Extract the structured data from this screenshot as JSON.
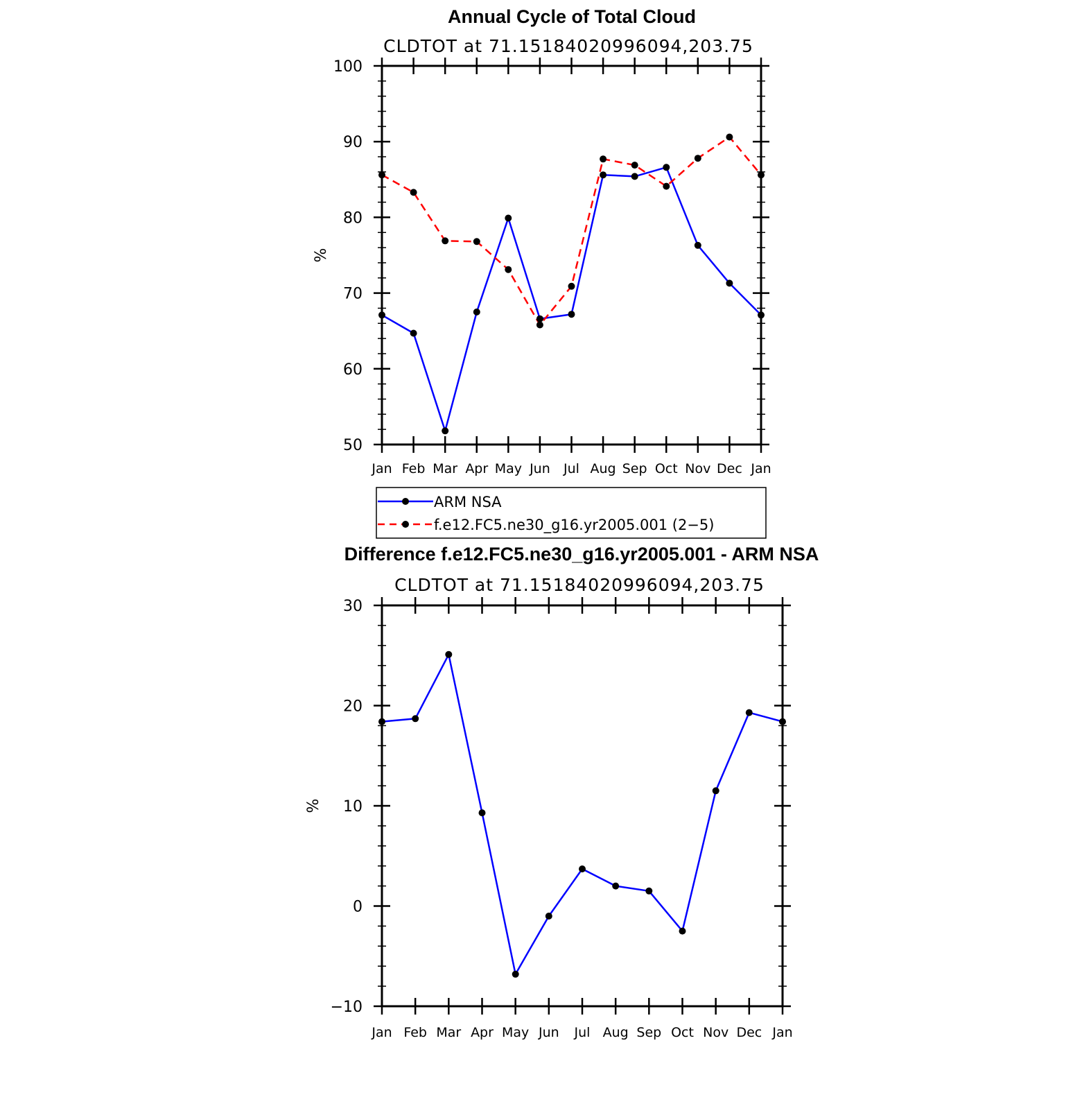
{
  "chart_data": [
    {
      "type": "line",
      "title": "Annual Cycle of Total Cloud",
      "subtitle": "CLDTOT at 71.15184020996094,203.75",
      "ylabel": "%",
      "xlabel": "",
      "ylim": [
        50,
        100
      ],
      "yticks": [
        50,
        60,
        70,
        80,
        90,
        100
      ],
      "categories": [
        "Jan",
        "Feb",
        "Mar",
        "Apr",
        "May",
        "Jun",
        "Jul",
        "Aug",
        "Sep",
        "Oct",
        "Nov",
        "Dec",
        "Jan"
      ],
      "series": [
        {
          "name": "ARM NSA",
          "color": "#0000ff",
          "dash": "solid",
          "values": [
            67.1,
            64.7,
            51.8,
            67.5,
            79.9,
            66.6,
            67.2,
            85.6,
            85.4,
            86.6,
            76.3,
            71.3,
            67.1
          ]
        },
        {
          "name": "f.e12.FC5.ne30_g16.yr2005.001 (2−5)",
          "color": "#ff0000",
          "dash": "dashed",
          "values": [
            85.6,
            83.3,
            76.9,
            76.8,
            73.1,
            65.8,
            70.9,
            87.7,
            86.9,
            84.1,
            87.8,
            90.6,
            85.6
          ]
        }
      ],
      "legend": "bottom"
    },
    {
      "type": "line",
      "title": "Difference f.e12.FC5.ne30_g16.yr2005.001 - ARM NSA",
      "subtitle": "CLDTOT at 71.15184020996094,203.75",
      "ylabel": "%",
      "xlabel": "",
      "ylim": [
        -10,
        30
      ],
      "yticks": [
        -10,
        0,
        10,
        20,
        30
      ],
      "ytick_labels": [
        "−10",
        "0",
        "10",
        "20",
        "30"
      ],
      "categories": [
        "Jan",
        "Feb",
        "Mar",
        "Apr",
        "May",
        "Jun",
        "Jul",
        "Aug",
        "Sep",
        "Oct",
        "Nov",
        "Dec",
        "Jan"
      ],
      "series": [
        {
          "name": "Difference",
          "color": "#0000ff",
          "dash": "solid",
          "values": [
            18.4,
            18.7,
            25.1,
            9.3,
            -6.8,
            -1.0,
            3.7,
            2.0,
            1.5,
            -2.5,
            11.5,
            19.3,
            18.4
          ]
        }
      ]
    }
  ]
}
